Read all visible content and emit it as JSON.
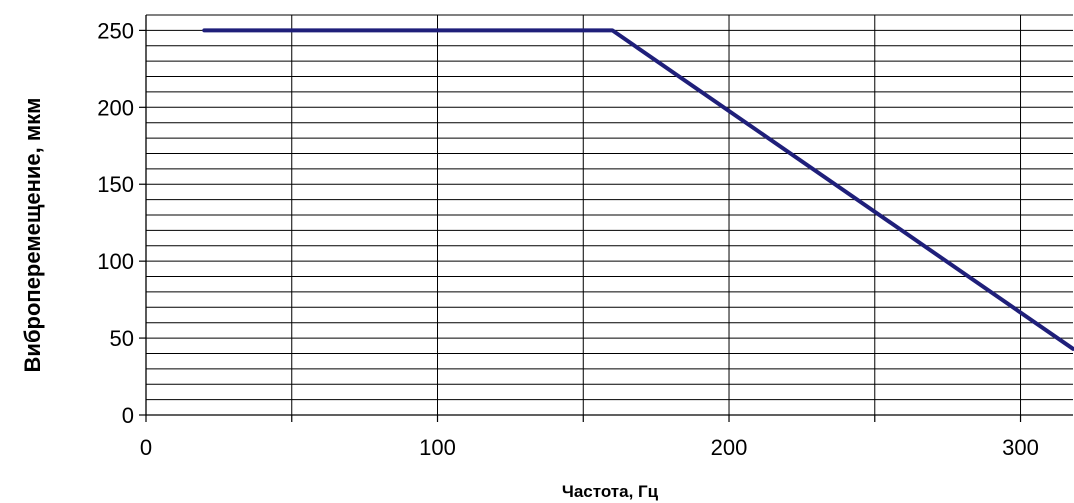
{
  "chart_data": {
    "type": "line",
    "title": "",
    "xlabel": "Частота, Гц",
    "ylabel": "Виброперемещение, мкм",
    "xlim": [
      0,
      318
    ],
    "ylim": [
      0,
      260
    ],
    "x_ticks": [
      0,
      100,
      200,
      300
    ],
    "x_tick_labels": [
      "0",
      "100",
      "200",
      "300"
    ],
    "x_minor_grid_step": 50,
    "y_ticks": [
      0,
      50,
      100,
      150,
      200,
      250
    ],
    "y_tick_labels": [
      "0",
      "50",
      "100",
      "150",
      "200",
      "250"
    ],
    "y_minor_grid_step": 10,
    "grid": true,
    "legend": "none",
    "series": [
      {
        "color": "#1f1f7a",
        "points": [
          [
            20,
            250
          ],
          [
            160,
            250
          ],
          [
            318,
            43
          ]
        ]
      }
    ]
  }
}
